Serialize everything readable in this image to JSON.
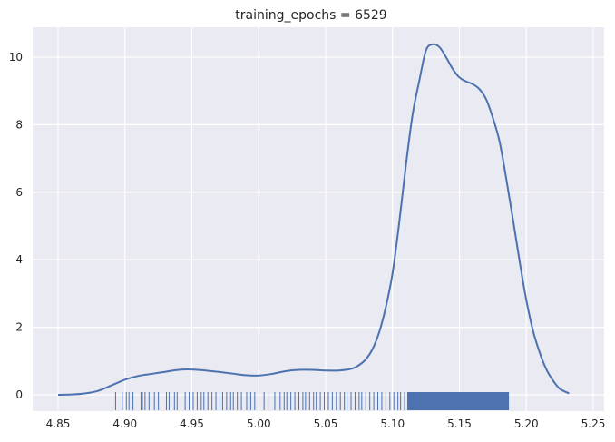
{
  "chart_data": {
    "type": "line",
    "title": "training_epochs = 6529",
    "xlabel": "",
    "ylabel": "",
    "xlim": [
      4.835,
      5.25
    ],
    "ylim": [
      -0.52,
      10.9
    ],
    "xticks": [
      4.85,
      4.9,
      4.95,
      5.0,
      5.05,
      5.1,
      5.15,
      5.2,
      5.25
    ],
    "xtick_labels": [
      "4.85",
      "4.90",
      "4.95",
      "5.00",
      "5.05",
      "5.10",
      "5.15",
      "5.20",
      "5.25"
    ],
    "yticks": [
      0,
      2,
      4,
      6,
      8,
      10
    ],
    "ytick_labels": [
      "0",
      "2",
      "4",
      "6",
      "8",
      "10"
    ],
    "grid": true,
    "background": "#eaeaf2",
    "line_color": "#4c72b0",
    "series": [
      {
        "kind": "kde",
        "x": [
          4.85,
          4.86,
          4.87,
          4.88,
          4.89,
          4.9,
          4.91,
          4.92,
          4.93,
          4.94,
          4.95,
          4.96,
          4.97,
          4.98,
          4.99,
          5.0,
          5.01,
          5.02,
          5.03,
          5.04,
          5.05,
          5.06,
          5.07,
          5.075,
          5.08,
          5.085,
          5.09,
          5.095,
          5.1,
          5.105,
          5.11,
          5.115,
          5.12,
          5.125,
          5.13,
          5.135,
          5.14,
          5.145,
          5.15,
          5.155,
          5.16,
          5.165,
          5.17,
          5.175,
          5.18,
          5.185,
          5.19,
          5.195,
          5.2,
          5.205,
          5.21,
          5.215,
          5.22,
          5.225,
          5.232
        ],
        "y": [
          0.0,
          0.01,
          0.04,
          0.12,
          0.28,
          0.45,
          0.56,
          0.62,
          0.68,
          0.74,
          0.75,
          0.72,
          0.68,
          0.63,
          0.58,
          0.57,
          0.62,
          0.7,
          0.74,
          0.74,
          0.72,
          0.72,
          0.78,
          0.88,
          1.05,
          1.35,
          1.85,
          2.6,
          3.6,
          5.1,
          6.8,
          8.3,
          9.3,
          10.2,
          10.38,
          10.3,
          10.0,
          9.65,
          9.4,
          9.28,
          9.2,
          9.05,
          8.75,
          8.2,
          7.5,
          6.4,
          5.2,
          3.95,
          2.8,
          1.9,
          1.25,
          0.75,
          0.42,
          0.18,
          0.04
        ]
      }
    ],
    "rug": {
      "sparse_x": [
        4.893,
        4.898,
        4.901,
        4.903,
        4.906,
        4.912,
        4.913,
        4.915,
        4.918,
        4.922,
        4.925,
        4.931,
        4.933,
        4.937,
        4.939,
        4.945,
        4.948,
        4.951,
        4.954,
        4.957,
        4.959,
        4.962,
        4.965,
        4.968,
        4.971,
        4.973,
        4.976,
        4.979,
        4.981,
        4.984,
        4.987,
        4.991,
        4.994,
        4.997,
        5.004,
        5.007,
        5.012,
        5.016,
        5.019,
        5.021,
        5.024,
        5.027,
        5.03,
        5.033,
        5.035,
        5.038,
        5.041,
        5.043,
        5.046,
        5.049,
        5.052,
        5.055,
        5.058,
        5.061,
        5.064,
        5.066,
        5.069,
        5.072,
        5.075,
        5.077,
        5.08,
        5.083,
        5.086,
        5.089,
        5.092,
        5.095,
        5.098,
        5.101,
        5.104,
        5.106,
        5.109
      ],
      "dense_range": [
        5.111,
        5.187
      ]
    }
  }
}
